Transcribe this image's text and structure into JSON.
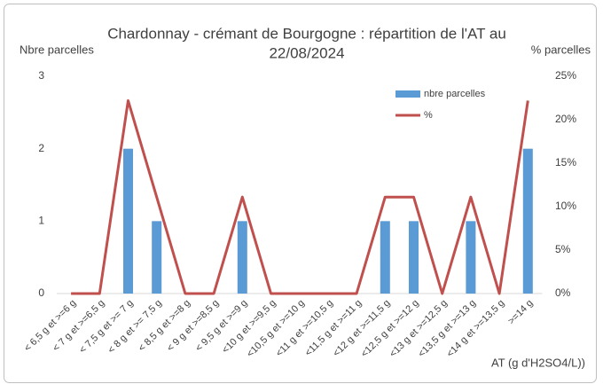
{
  "chart_data": {
    "type": "bar_line",
    "title": [
      "Chardonnay - crémant de Bourgogne : répartition de l'AT au",
      "22/08/2024"
    ],
    "y_label": "Nbre parcelles",
    "y2_label": "% parcelles",
    "x_label": "AT (g d'H2SO4/L))",
    "categories": [
      "< 6,5 g et >=6 g",
      "< 7 g et >=6,5 g",
      "< 7,5 g et >= 7 g",
      "< 8 g et >= 7,5 g",
      "< 8,5 g et >=8 g",
      "< 9 g et >=8,5 g",
      "< 9,5 g et >=9 g",
      "<10 g et >=9,5 g",
      "<10,5 g et >=10 g",
      "<11 g et >=10,5 g",
      "<11,5 g et >=11 g",
      "<12 g et >=11,5 g",
      "<12,5 g et >=12 g",
      "<13 g et >=12,5 g",
      "<13,5 g et >=13 g",
      "<14 g et >=13,5 g",
      ">=14 g"
    ],
    "series": [
      {
        "name": "nbre parcelles",
        "type": "bar",
        "color": "#5b9bd5",
        "values": [
          0,
          0,
          2,
          1,
          0,
          0,
          1,
          0,
          0,
          0,
          0,
          1,
          1,
          0,
          1,
          0,
          2
        ]
      },
      {
        "name": "%",
        "type": "line",
        "axis": "y2",
        "color": "#c0504d",
        "values": [
          0,
          0,
          22.2,
          11.1,
          0,
          0,
          11.1,
          0,
          0,
          0,
          0,
          11.1,
          11.1,
          0,
          11.1,
          0,
          22.2
        ]
      }
    ],
    "ylim": [
      0,
      3
    ],
    "yticks": [
      0,
      1,
      2,
      3
    ],
    "y2lim": [
      0,
      25
    ],
    "y2ticks": [
      {
        "value": 0,
        "label": "0%"
      },
      {
        "value": 5,
        "label": "5%"
      },
      {
        "value": 10,
        "label": "10%"
      },
      {
        "value": 15,
        "label": "15%"
      },
      {
        "value": 20,
        "label": "20%"
      },
      {
        "value": 25,
        "label": "25%"
      }
    ],
    "grid": false,
    "legend": "upper right"
  }
}
